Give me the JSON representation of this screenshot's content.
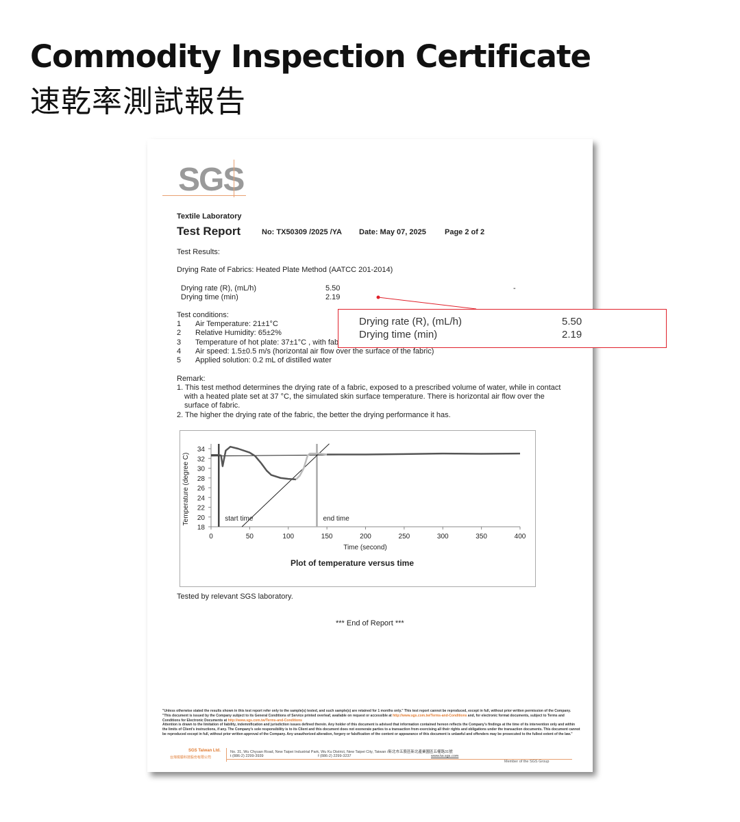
{
  "header": {
    "title": "Commodity Inspection Certificate",
    "subtitle": "速乾率測試報告"
  },
  "doc": {
    "logo": "SGS",
    "lab": "Textile Laboratory",
    "report_title": "Test Report",
    "no": "No: TX50309 /2025 /YA",
    "date": "Date: May 07, 2025",
    "page": "Page  2  of  2",
    "results_label": "Test Results:",
    "method": "Drying Rate of Fabrics: Heated Plate Method (AATCC 201-2014)",
    "results": [
      {
        "label": "Drying rate (R), (mL/h)",
        "value": "5.50",
        "extra": "-"
      },
      {
        "label": "Drying time (min)",
        "value": "2.19"
      }
    ],
    "conditions_label": "Test conditions:",
    "conditions": [
      {
        "n": "1",
        "text": "Air Temperature: 21±1°C"
      },
      {
        "n": "2",
        "text": "Relative Humidity: 65±2%"
      },
      {
        "n": "3",
        "text": "Temperature of hot plate: 37±1°C , with fab"
      },
      {
        "n": "4",
        "text": "Air speed: 1.5±0.5 m/s    (horizontal air flow over the surface of the fabric)"
      },
      {
        "n": "5",
        "text": "Applied solution: 0.2 mL of distilled water"
      }
    ],
    "remark_label": "Remark:",
    "remarks": [
      "1. This test method determines the drying rate of a fabric, exposed to a prescribed volume of water, while in contact",
      "with a heated plate set at 37 °C, the simulated skin surface temperature. There is horizontal air flow over the",
      "surface of fabric.",
      "2. The higher the drying rate of the fabric, the better the drying performance it has."
    ],
    "tested_by": "Tested by relevant SGS laboratory.",
    "end": "*** End of Report ***",
    "footer": {
      "p1": "\"Unless otherwise stated the results shown in this test report refer only to the sample(s) tested, and such sample(s) are retained for 1 months only.\" This test report cannot be reproduced, except in full, without prior written permission of the Company.",
      "p2a": "\"This document is issued by the Company subject to its General Conditions of Service printed overleaf, available on request or accessible at ",
      "link": "http://www.sgs.com.tw/Terms-and-Conditions",
      "p2b": " and, for electronic format documents, subject to Terms and Conditions for Electronic Documents at ",
      "p3": "Attention is drawn to the limitation of liability, indemnification and jurisdiction issues defined therein. Any holder of this document is advised that information contained hereon reflects the Company's findings at the time of its intervention only and within the limits of Client's instructions, if any. The Company's sole responsibility is to its Client and this document does not exonerate parties to a transaction from exercising all their rights and obligations under the transaction documents. This document cannot be reproduced except in full, without prior written approval of the Company. Any unauthorized alteration, forgery or falsification of the content or appearance of this document is unlawful and offenders may be prosecuted to the fullest extent of the law.\"",
      "company": "SGS Taiwan Ltd.",
      "company_zh": "台灣檢驗科技股份有限公司",
      "address": "No. 31, Wu Chyuan Road, New Taipei Industrial Park, Wu Ku District, New Taipei City, Taiwan /新北市五股區新北產業園區五權路31號",
      "tel": "t (886-2) 2299-3939",
      "fax": "f (886-2) 2299-3237",
      "web": "www.tw.sgs.com",
      "member": "Member of the SGS Group"
    }
  },
  "callout": {
    "rate_label": "Drying rate (R), (mL/h)",
    "rate": "5.50",
    "time_label": "Drying time (min)",
    "time": "2.19",
    "color": "#e0202a"
  },
  "chart_data": {
    "type": "line",
    "title": "Plot of temperature versus time",
    "xlabel": "Time (second)",
    "ylabel": "Temperature (degree C)",
    "xlim": [
      0,
      400
    ],
    "ylim": [
      18,
      35
    ],
    "xticks": [
      "0",
      "50",
      "100",
      "150",
      "200",
      "250",
      "300",
      "350",
      "400"
    ],
    "yticks": [
      "18",
      "20",
      "22",
      "24",
      "26",
      "28",
      "30",
      "32",
      "34"
    ],
    "annotations": [
      {
        "text": "start time",
        "x": 10
      },
      {
        "text": "end time",
        "x": 137
      }
    ],
    "series": [
      {
        "color": "#555555",
        "points": [
          [
            0,
            32.7
          ],
          [
            10,
            32.7
          ],
          [
            13,
            32.6
          ],
          [
            15,
            30.4
          ],
          [
            17,
            32
          ],
          [
            19,
            33.6
          ],
          [
            25,
            34.4
          ],
          [
            35,
            34
          ],
          [
            50,
            33.2
          ],
          [
            57,
            32.5
          ],
          [
            65,
            31
          ],
          [
            72,
            29.5
          ],
          [
            78,
            28.6
          ],
          [
            90,
            28
          ],
          [
            100,
            27.8
          ],
          [
            110,
            27.7
          ]
        ]
      },
      {
        "color": "#bbbbbb",
        "points": [
          [
            110,
            27.7
          ],
          [
            115,
            28.5
          ],
          [
            120,
            30
          ],
          [
            125,
            32.6
          ],
          [
            128,
            33
          ],
          [
            140,
            33
          ],
          [
            150,
            32.8
          ]
        ]
      },
      {
        "color": "#555555",
        "points": [
          [
            150,
            32.8
          ],
          [
            200,
            32.8
          ],
          [
            250,
            32.9
          ],
          [
            300,
            33
          ],
          [
            350,
            32.95
          ],
          [
            400,
            33
          ]
        ]
      }
    ],
    "reference_lines": [
      {
        "type": "baseline",
        "from": [
          0,
          32.5
        ],
        "to": [
          340,
          33
        ]
      },
      {
        "type": "tangent",
        "from": [
          40,
          18
        ],
        "to": [
          153,
          35
        ]
      }
    ]
  }
}
